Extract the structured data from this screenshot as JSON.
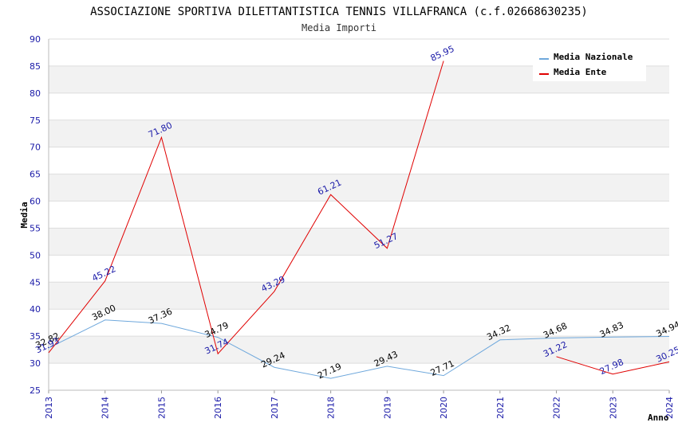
{
  "chart_data": {
    "type": "line",
    "title": "ASSOCIAZIONE SPORTIVA DILETTANTISTICA TENNIS VILLAFRANCA (c.f.02668630235)",
    "subtitle": "Media Importi",
    "xlabel": "Anno",
    "ylabel": "Media",
    "ylim": [
      25,
      90
    ],
    "yticks": [
      25,
      30,
      35,
      40,
      45,
      50,
      55,
      60,
      65,
      70,
      75,
      80,
      85,
      90
    ],
    "categories": [
      "2013",
      "2014",
      "2015",
      "2016",
      "2017",
      "2018",
      "2019",
      "2020",
      "2021",
      "2022",
      "2023",
      "2024"
    ],
    "series": [
      {
        "name": "Media Nazionale",
        "color": "#6fa8dc",
        "values": [
          32.82,
          38.0,
          37.36,
          34.79,
          29.24,
          27.19,
          29.43,
          27.71,
          34.32,
          34.68,
          34.83,
          34.94
        ],
        "labels": [
          "32.82",
          "38.00",
          "37.36",
          "34.79",
          "29.24",
          "27.19",
          "29.43",
          "27.71",
          "34.32",
          "34.68",
          "34.83",
          "34.94"
        ]
      },
      {
        "name": "Media Ente",
        "color": "#e00000",
        "values": [
          31.93,
          45.22,
          71.8,
          31.74,
          43.29,
          61.21,
          51.27,
          85.95,
          null,
          31.22,
          27.98,
          30.25
        ],
        "labels": [
          "31.93",
          "45.22",
          "71.80",
          "31.74",
          "43.29",
          "61.21",
          "51.27",
          "85.95",
          null,
          "31.22",
          "27.98",
          "30.25"
        ]
      }
    ],
    "legend_position": "top-right",
    "grid": true
  }
}
